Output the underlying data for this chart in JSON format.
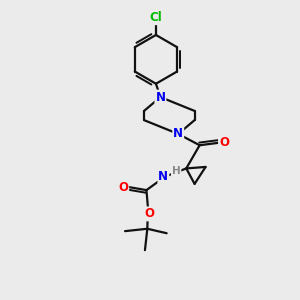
{
  "bg_color": "#ebebeb",
  "atom_colors": {
    "N": "#0000ee",
    "O": "#ff0000",
    "Cl": "#00bb00",
    "C": "#000000",
    "H": "#888888"
  },
  "bond_color": "#111111",
  "bond_width": 1.6,
  "title": ""
}
